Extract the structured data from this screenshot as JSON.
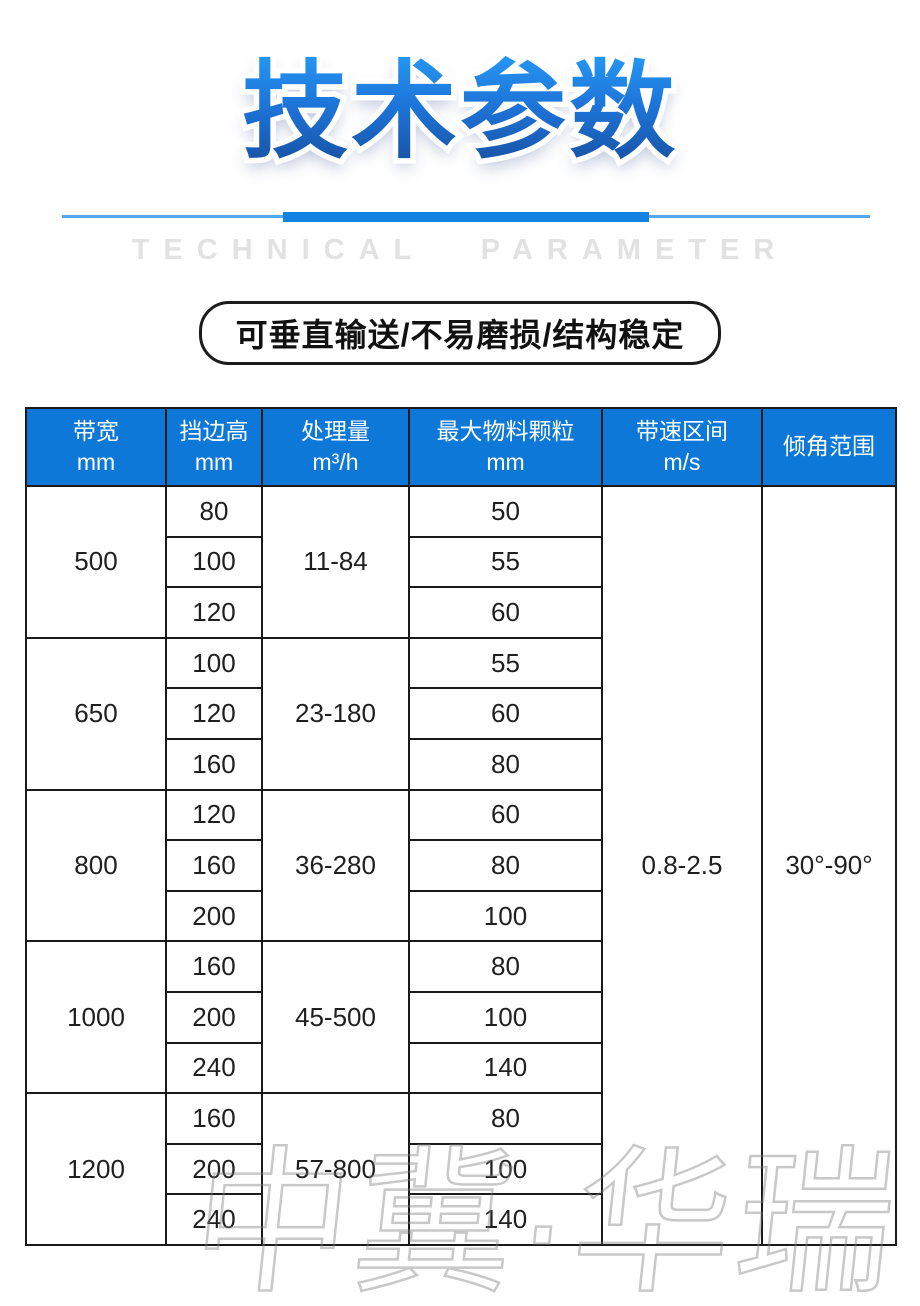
{
  "header": {
    "title": "技术参数",
    "subtitle": "TECHNICAL PARAMETER",
    "tagline": "可垂直输送/不易磨损/结构稳定"
  },
  "watermark": "中冀·华瑞",
  "colors": {
    "header_blue": "#0e78d8",
    "divider_light_blue": "#54a7ef",
    "divider_dark_blue": "#1181e2",
    "title_gradient_top": "#2698f4",
    "title_gradient_bottom": "#174f9f"
  },
  "table": {
    "columns": [
      {
        "label": "带宽",
        "unit": "mm"
      },
      {
        "label": "挡边高",
        "unit": "mm"
      },
      {
        "label": "处理量",
        "unit": "m³/h"
      },
      {
        "label": "最大物料颗粒",
        "unit": "mm"
      },
      {
        "label": "带速区间",
        "unit": "m/s"
      },
      {
        "label": "倾角范围",
        "unit": ""
      }
    ],
    "groups": [
      {
        "belt_width": "500",
        "capacity": "11-84",
        "rows": [
          {
            "edge_height": "80",
            "max_particle": "50"
          },
          {
            "edge_height": "100",
            "max_particle": "55"
          },
          {
            "edge_height": "120",
            "max_particle": "60"
          }
        ]
      },
      {
        "belt_width": "650",
        "capacity": "23-180",
        "rows": [
          {
            "edge_height": "100",
            "max_particle": "55"
          },
          {
            "edge_height": "120",
            "max_particle": "60"
          },
          {
            "edge_height": "160",
            "max_particle": "80"
          }
        ]
      },
      {
        "belt_width": "800",
        "capacity": "36-280",
        "rows": [
          {
            "edge_height": "120",
            "max_particle": "60"
          },
          {
            "edge_height": "160",
            "max_particle": "80"
          },
          {
            "edge_height": "200",
            "max_particle": "100"
          }
        ]
      },
      {
        "belt_width": "1000",
        "capacity": "45-500",
        "rows": [
          {
            "edge_height": "160",
            "max_particle": "80"
          },
          {
            "edge_height": "200",
            "max_particle": "100"
          },
          {
            "edge_height": "240",
            "max_particle": "140"
          }
        ]
      },
      {
        "belt_width": "1200",
        "capacity": "57-800",
        "rows": [
          {
            "edge_height": "160",
            "max_particle": "80"
          },
          {
            "edge_height": "200",
            "max_particle": "100"
          },
          {
            "edge_height": "240",
            "max_particle": "140"
          }
        ]
      }
    ],
    "speed_range": "0.8-2.5",
    "angle_range": "30°-90°"
  }
}
